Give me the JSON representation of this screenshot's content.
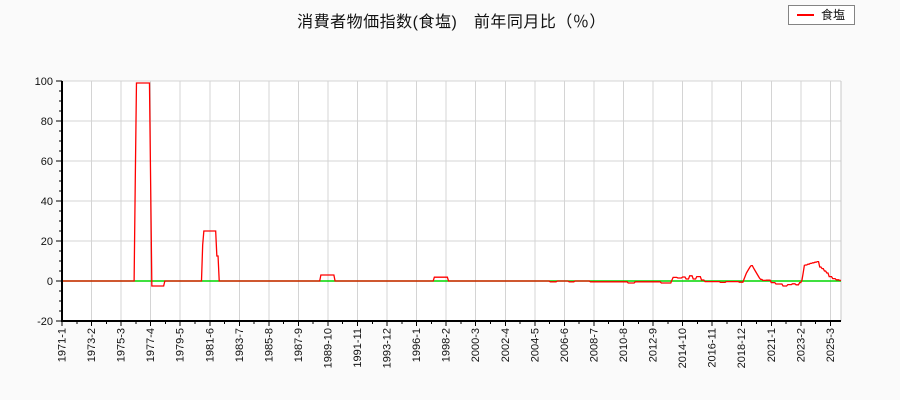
{
  "title": "消費者物価指数(食塩)　前年同月比（％）",
  "legend": {
    "position": "top-right",
    "items": [
      {
        "label": "食塩",
        "color": "#ff0000"
      }
    ]
  },
  "colors": {
    "series_line": "#ff0000",
    "zero_line": "#00d500",
    "grid_line": "#d4d4d4",
    "plot_border": "#c8c8c8",
    "axis": "#000000",
    "plot_background": "#ffffff",
    "page_background": "#fafafa",
    "text": "#111111"
  },
  "chart_data": {
    "type": "line",
    "title": "消費者物価指数(食塩)　前年同月比（％）",
    "series_name": "食塩",
    "x_unit": "month",
    "x_start": "1971-01",
    "x_end": "2025-12",
    "x_tick_interval_months": 25,
    "x_tick_labels": [
      "1971-1",
      "1973-2",
      "1975-3",
      "1977-4",
      "1979-5",
      "1981-6",
      "1983-7",
      "1985-8",
      "1987-9",
      "1989-10",
      "1991-11",
      "1993-12",
      "1996-1",
      "1998-2",
      "2000-3",
      "2002-4",
      "2004-5",
      "2006-6",
      "2008-7",
      "2010-8",
      "2012-9",
      "2014-10",
      "2016-11",
      "2018-12",
      "2021-1",
      "2023-2",
      "2025-3"
    ],
    "y_ticks": [
      -20,
      0,
      20,
      40,
      60,
      80,
      100
    ],
    "ylim": [
      -20,
      100
    ],
    "grid": true,
    "zero_reference_line": 0,
    "breakpoints": [
      [
        "1971-01",
        0
      ],
      [
        "1976-03",
        51
      ],
      [
        "1976-04",
        99
      ],
      [
        "1977-04",
        48
      ],
      [
        "1977-05",
        -2.5
      ],
      [
        "1978-04",
        0
      ],
      [
        "1980-12",
        18
      ],
      [
        "1981-01",
        25
      ],
      [
        "1981-12",
        12.5
      ],
      [
        "1982-02",
        0
      ],
      [
        "1989-04",
        3
      ],
      [
        "1990-04",
        0
      ],
      [
        "1997-04",
        1.9
      ],
      [
        "1998-04",
        0
      ],
      [
        "2005-06",
        -0.4
      ],
      [
        "2005-12",
        0
      ],
      [
        "2006-10",
        -0.4
      ],
      [
        "2007-03",
        0
      ],
      [
        "2008-04",
        -0.4
      ],
      [
        "2010-12",
        -1.0
      ],
      [
        "2011-06",
        -0.4
      ],
      [
        "2013-04",
        -1.0
      ],
      [
        "2014-01",
        0.5
      ],
      [
        "2014-02",
        1.8
      ],
      [
        "2014-06",
        1.5
      ],
      [
        "2014-10",
        2.0
      ],
      [
        "2015-01",
        1.0
      ],
      [
        "2015-04",
        2.6
      ],
      [
        "2015-07",
        1.0
      ],
      [
        "2015-10",
        2.2
      ],
      [
        "2016-02",
        0.5
      ],
      [
        "2016-05",
        -0.3
      ],
      [
        "2017-06",
        -0.7
      ],
      [
        "2017-11",
        -0.3
      ],
      [
        "2018-10",
        -0.6
      ],
      [
        "2019-02",
        1.0
      ],
      [
        "2019-03",
        2.5
      ],
      [
        "2019-04",
        4.0
      ],
      [
        "2019-05",
        5.0
      ],
      [
        "2019-06",
        6.0
      ],
      [
        "2019-07",
        7.0
      ],
      [
        "2019-08",
        7.7
      ],
      [
        "2019-10",
        6.5
      ],
      [
        "2019-11",
        5.5
      ],
      [
        "2019-12",
        4.5
      ],
      [
        "2020-01",
        3.5
      ],
      [
        "2020-02",
        2.5
      ],
      [
        "2020-03",
        1.5
      ],
      [
        "2020-04",
        0.8
      ],
      [
        "2020-06",
        0.3
      ],
      [
        "2020-09",
        0.4
      ],
      [
        "2021-01",
        -0.8
      ],
      [
        "2021-05",
        -1.5
      ],
      [
        "2021-11",
        -2.5
      ],
      [
        "2022-03",
        -1.8
      ],
      [
        "2022-07",
        -1.4
      ],
      [
        "2022-10",
        -1.9
      ],
      [
        "2023-01",
        -0.8
      ],
      [
        "2023-03",
        0.5
      ],
      [
        "2023-04",
        4.0
      ],
      [
        "2023-05",
        7.8
      ],
      [
        "2023-06",
        8.0
      ],
      [
        "2023-08",
        8.4
      ],
      [
        "2023-10",
        8.8
      ],
      [
        "2023-12",
        9.1
      ],
      [
        "2024-02",
        9.4
      ],
      [
        "2024-04",
        9.7
      ],
      [
        "2024-06",
        7.0
      ],
      [
        "2024-08",
        6.2
      ],
      [
        "2024-10",
        5.0
      ],
      [
        "2024-12",
        4.0
      ],
      [
        "2025-02",
        2.2
      ],
      [
        "2025-05",
        1.2
      ],
      [
        "2025-08",
        0.6
      ],
      [
        "2025-11",
        0.3
      ]
    ]
  }
}
